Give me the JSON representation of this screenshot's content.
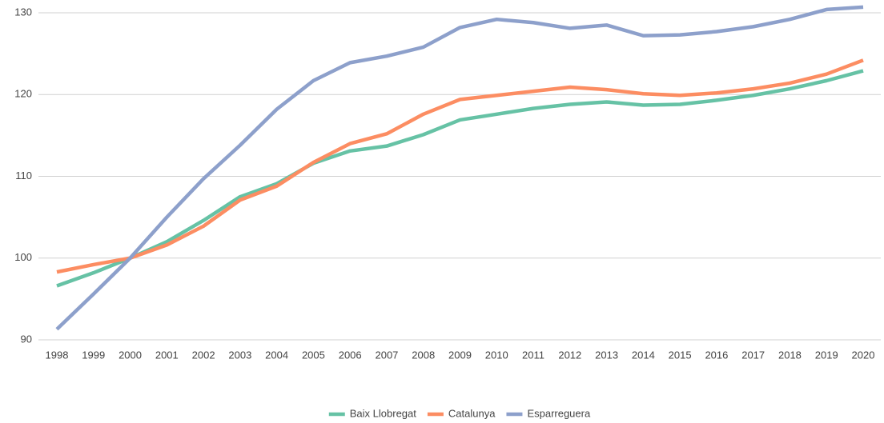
{
  "chart_data": {
    "type": "line",
    "categories": [
      "1998",
      "1999",
      "2000",
      "2001",
      "2002",
      "2003",
      "2004",
      "2005",
      "2006",
      "2007",
      "2008",
      "2009",
      "2010",
      "2011",
      "2012",
      "2013",
      "2014",
      "2015",
      "2016",
      "2017",
      "2018",
      "2019",
      "2020"
    ],
    "series": [
      {
        "name": "Baix Llobregat",
        "color": "#66c2a5",
        "values": [
          96.6,
          98.2,
          100,
          102.0,
          104.6,
          107.5,
          109.1,
          111.6,
          113.1,
          113.7,
          115.1,
          116.9,
          117.6,
          118.3,
          118.8,
          119.1,
          118.7,
          118.8,
          119.3,
          119.9,
          120.7,
          121.7,
          122.9
        ]
      },
      {
        "name": "Catalunya",
        "color": "#fc8d62",
        "values": [
          98.3,
          99.2,
          100,
          101.6,
          103.9,
          107.1,
          108.8,
          111.7,
          114.0,
          115.2,
          117.6,
          119.4,
          119.9,
          120.4,
          120.9,
          120.6,
          120.1,
          119.9,
          120.2,
          120.7,
          121.4,
          122.5,
          124.2
        ]
      },
      {
        "name": "Esparreguera",
        "color": "#8da0cb",
        "values": [
          91.3,
          95.6,
          100,
          105.0,
          109.7,
          113.8,
          118.2,
          121.7,
          123.9,
          124.7,
          125.8,
          128.2,
          129.2,
          128.8,
          128.1,
          128.5,
          127.2,
          127.3,
          127.7,
          128.3,
          129.2,
          130.4,
          130.7
        ]
      }
    ],
    "ylim": [
      90,
      130
    ],
    "yticks": [
      90,
      100,
      110,
      120,
      130
    ],
    "grid": true,
    "legend": "bottom"
  }
}
